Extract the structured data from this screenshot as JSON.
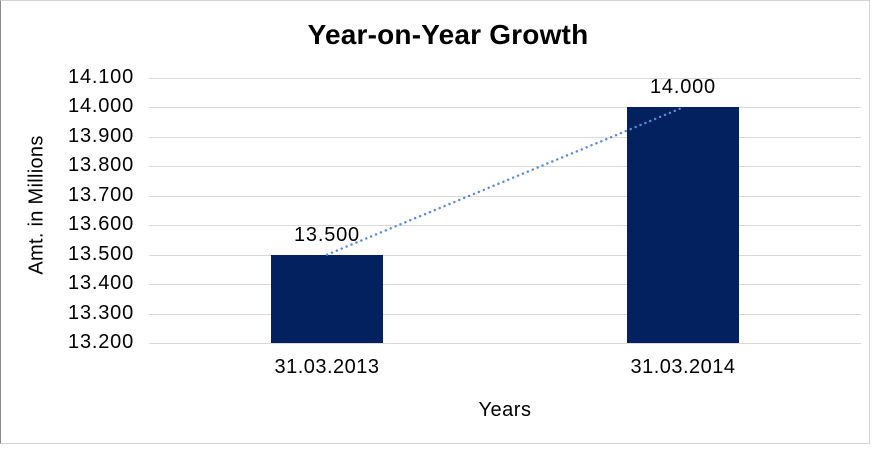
{
  "chart_data": {
    "type": "bar",
    "title": "Year-on-Year Growth",
    "xlabel": "Years",
    "ylabel": "Amt. in Millions",
    "categories": [
      "31.03.2013",
      "31.03.2014"
    ],
    "values": [
      13500,
      14000
    ],
    "value_labels": [
      "13.500",
      "14.000"
    ],
    "y_ticks": [
      "14.100",
      "14.000",
      "13.900",
      "13.800",
      "13.700",
      "13.600",
      "13.500",
      "13.400",
      "13.300",
      "13.200"
    ],
    "ylim": [
      13200,
      14100
    ],
    "y_step": 100,
    "grid": true,
    "legend": "none",
    "bar_color": "#02215E",
    "grid_color": "#D9D9D9",
    "text_color": "#000000",
    "frame_border_color": "#D4D4D4",
    "frame_left_border_color": "#8C8C8C",
    "trendline": {
      "style": "dotted",
      "color": "#5B8BD5",
      "from_value": 13500,
      "to_value": 14000
    }
  }
}
